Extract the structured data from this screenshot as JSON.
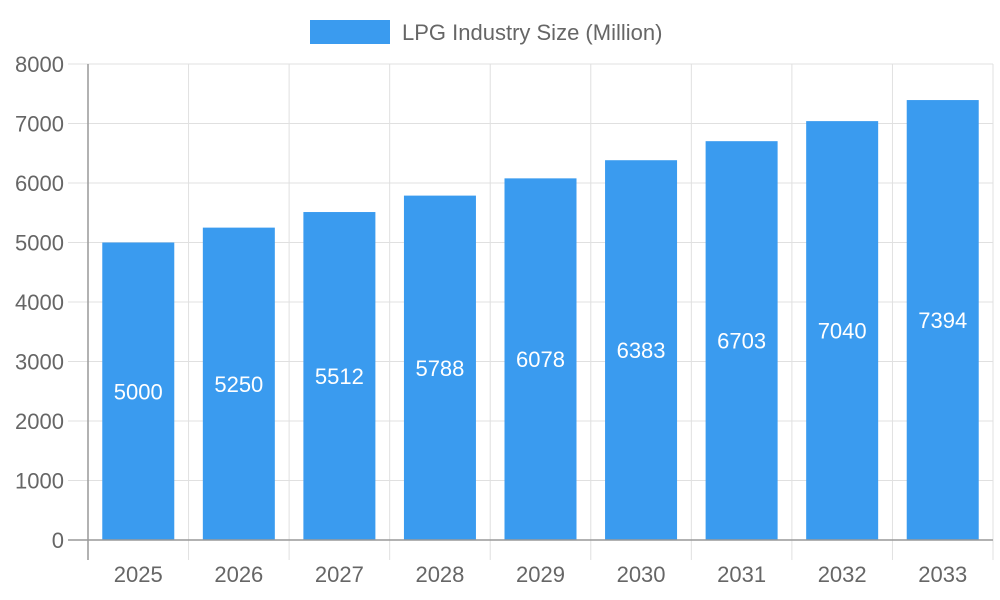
{
  "chart_data": {
    "type": "bar",
    "title": "",
    "xlabel": "",
    "ylabel": "",
    "categories": [
      "2025",
      "2026",
      "2027",
      "2028",
      "2029",
      "2030",
      "2031",
      "2032",
      "2033"
    ],
    "series": [
      {
        "name": "LPG Industry Size (Million)",
        "values": [
          5000,
          5250,
          5512,
          5788,
          6078,
          6383,
          6703,
          7040,
          7394
        ],
        "color": "#3a9bef"
      }
    ],
    "ylim": [
      0,
      8000
    ],
    "yticks": [
      0,
      1000,
      2000,
      3000,
      4000,
      5000,
      6000,
      7000,
      8000
    ],
    "grid": true,
    "legend": "top-center",
    "data_labels": true
  }
}
